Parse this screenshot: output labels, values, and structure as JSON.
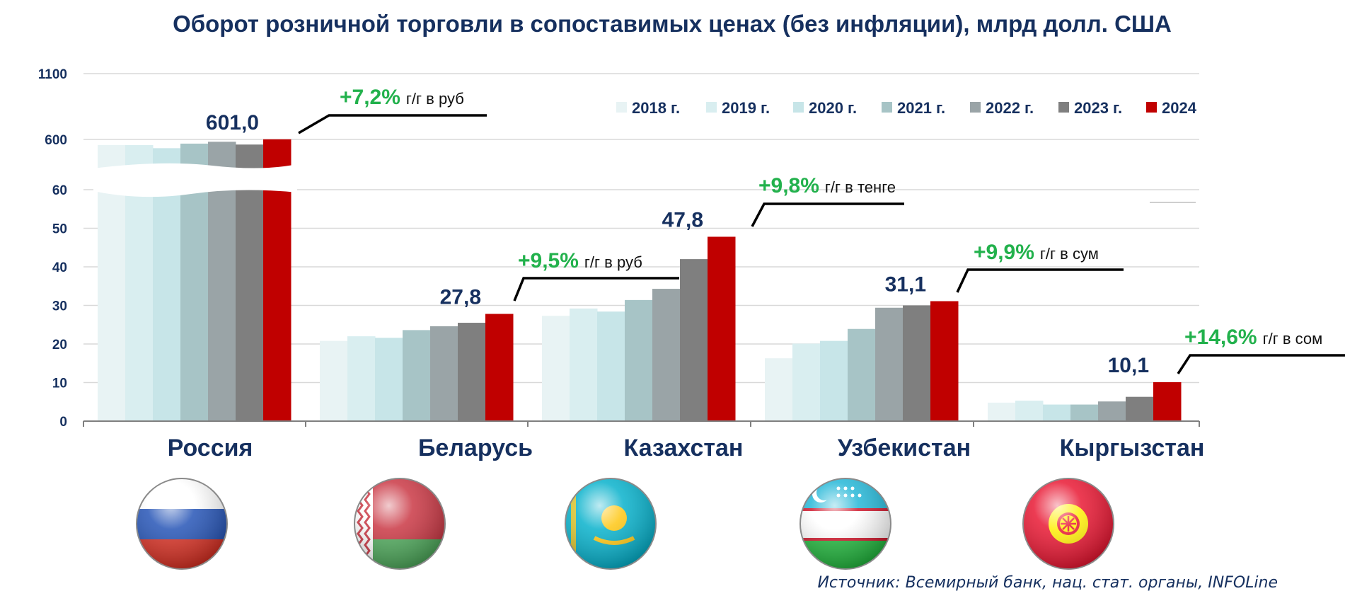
{
  "title": "Оборот розничной торговли в сопоставимых ценах (без инфляции), млрд долл. США",
  "source": "Источник: Всемирный банк, нац. стат. органы, INFOLine",
  "colors": {
    "title": "#16305f",
    "growth": "#22b14c",
    "series": [
      "#e8f3f4",
      "#d9eef0",
      "#c7e5e8",
      "#a7c4c6",
      "#9aa4a7",
      "#7f7f7f",
      "#c00000"
    ]
  },
  "chart_data": {
    "type": "bar",
    "title": "Оборот розничной торговли в сопоставимых ценах (без инфляции), млрд долл. США",
    "y_scale": "broken",
    "y_ticks": [
      "0",
      "10",
      "20",
      "30",
      "40",
      "50",
      "60",
      "600",
      "1100"
    ],
    "categories": [
      "Россия",
      "Беларусь",
      "Казахстан",
      "Узбекистан",
      "Кыргызстан"
    ],
    "series": [
      {
        "name": "2018 г.",
        "values": [
          540,
          20.8,
          27.3,
          16.3,
          4.8
        ]
      },
      {
        "name": "2019 г.",
        "values": [
          540,
          22.0,
          29.2,
          20.1,
          5.3
        ]
      },
      {
        "name": "2020 г.",
        "values": [
          506,
          21.6,
          28.4,
          20.8,
          4.3
        ]
      },
      {
        "name": "2021 г.",
        "values": [
          555,
          23.6,
          31.4,
          23.9,
          4.3
        ]
      },
      {
        "name": "2022 г.",
        "values": [
          575,
          24.6,
          34.3,
          29.4,
          5.1
        ]
      },
      {
        "name": "2023 г.",
        "values": [
          545,
          25.5,
          42.0,
          30.0,
          6.3
        ]
      },
      {
        "name": "2024",
        "values": [
          601.0,
          27.8,
          47.8,
          31.1,
          10.1
        ]
      }
    ],
    "data_labels_2024": [
      "601,0",
      "27,8",
      "47,8",
      "31,1",
      "10,1"
    ],
    "growth_labels": [
      {
        "pct": "+7,2%",
        "text": "г/г в руб"
      },
      {
        "pct": "+9,5%",
        "text": "г/г в руб"
      },
      {
        "pct": "+9,8%",
        "text": "г/г в тенге"
      },
      {
        "pct": "+9,9%",
        "text": "г/г в сум"
      },
      {
        "pct": "+14,6%",
        "text": "г/г в сом"
      }
    ],
    "legend_position": "top-right",
    "grid": true
  },
  "flags": [
    {
      "icon": "russia-flag-icon"
    },
    {
      "icon": "belarus-flag-icon"
    },
    {
      "icon": "kazakhstan-flag-icon"
    },
    {
      "icon": "uzbekistan-flag-icon"
    },
    {
      "icon": "kyrgyzstan-flag-icon"
    }
  ]
}
